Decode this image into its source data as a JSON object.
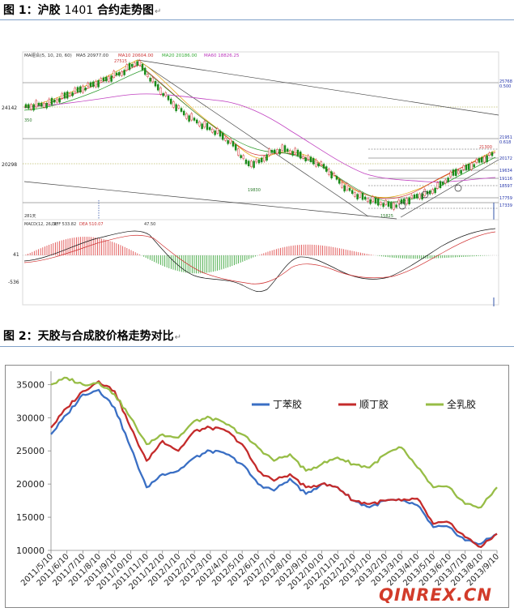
{
  "figure1": {
    "caption_prefix": "图 1：沪胶 ",
    "caption_code": "1401",
    "caption_suffix": " 合约走势图",
    "return_mark": "↵",
    "indicator": "MA组合(5, 10, 20, 60)",
    "ma5": "MA5 20977.00",
    "ma10": "MA10 20604.00",
    "ma20": "MA20 20186.00",
    "ma60": "MA60 18826.25",
    "y_labels": [
      "24142",
      "20298"
    ],
    "left_marks": [
      "350",
      "281天"
    ],
    "peak_label": "27515",
    "right_prices": [
      "25768",
      "0.500",
      "21951",
      "0.618",
      "20172",
      "19634",
      "19116",
      "18597",
      "17759",
      "17339"
    ],
    "mid_labels": [
      "21300",
      "19830",
      "15825"
    ],
    "macd": "MACD(12, 26, 9)",
    "diff": "DIFF 533.82",
    "dea": "DEA 510.07",
    "macd_val": "47.50",
    "macd_axis": [
      "41",
      "-536"
    ]
  },
  "figure2": {
    "caption": "图 2：天胶与合成胶价格走势对比",
    "return_mark": "↵",
    "chart_data": {
      "type": "line",
      "title": "",
      "xlabel": "",
      "ylabel": "",
      "ylim": [
        10000,
        37000
      ],
      "yticks": [
        10000,
        15000,
        20000,
        25000,
        30000,
        35000
      ],
      "categories": [
        "2011/5/10",
        "2011/6/10",
        "2011/7/10",
        "2011/8/10",
        "2011/9/10",
        "2011/10/10",
        "2011/11/10",
        "2011/12/10",
        "2012/1/10",
        "2012/2/10",
        "2012/3/10",
        "2012/4/10",
        "2012/5/10",
        "2012/6/10",
        "2012/7/10",
        "2012/8/10",
        "2012/9/10",
        "2012/10/10",
        "2012/11/10",
        "2012/12/10",
        "2013/1/10",
        "2013/2/10",
        "2013/3/10",
        "2013/4/10",
        "2013/5/10",
        "2013/6/10",
        "2013/7/10",
        "2013/8/10",
        "2013/9/10"
      ],
      "legend_position": "top-right",
      "series": [
        {
          "name": "丁苯胶",
          "color": "#3a6fc4",
          "values": [
            27500,
            30500,
            33500,
            34200,
            31500,
            25500,
            19500,
            21500,
            22000,
            24000,
            25000,
            24500,
            23000,
            20000,
            19000,
            20800,
            18500,
            20000,
            19500,
            17500,
            16500,
            17500,
            17500,
            16800,
            13500,
            13500,
            11500,
            11000,
            12500
          ]
        },
        {
          "name": "顺丁胶",
          "color": "#c42b2b",
          "values": [
            28500,
            31500,
            34000,
            35500,
            34000,
            28500,
            23500,
            26500,
            25000,
            28000,
            28500,
            28000,
            26000,
            22000,
            20500,
            21500,
            19500,
            20000,
            19500,
            17500,
            17000,
            17500,
            17500,
            17800,
            14000,
            14200,
            12000,
            10500,
            12500
          ]
        },
        {
          "name": "全乳胶",
          "color": "#97bd46",
          "values": [
            35000,
            36000,
            35000,
            35300,
            33500,
            30000,
            26000,
            27500,
            27000,
            29500,
            30000,
            29000,
            27500,
            25500,
            23500,
            24500,
            22000,
            23000,
            24000,
            23000,
            22500,
            24500,
            25500,
            22500,
            19500,
            19500,
            17000,
            16500,
            19500
          ]
        }
      ]
    }
  },
  "watermark": "QINREX.CN"
}
